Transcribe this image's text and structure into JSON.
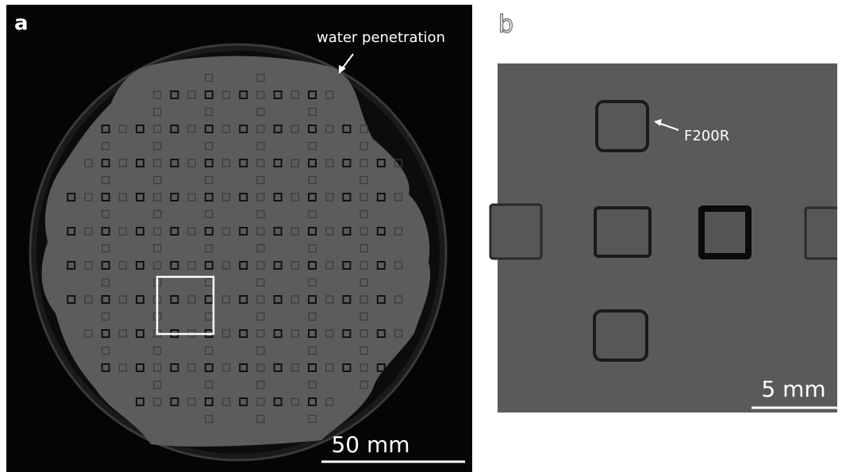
{
  "panel_a": {
    "label": "a",
    "annotation": "water penetration",
    "scale_bar": "50 mm"
  },
  "panel_b": {
    "label": "b",
    "annotation": "F200R",
    "scale_bar": "5 mm"
  }
}
